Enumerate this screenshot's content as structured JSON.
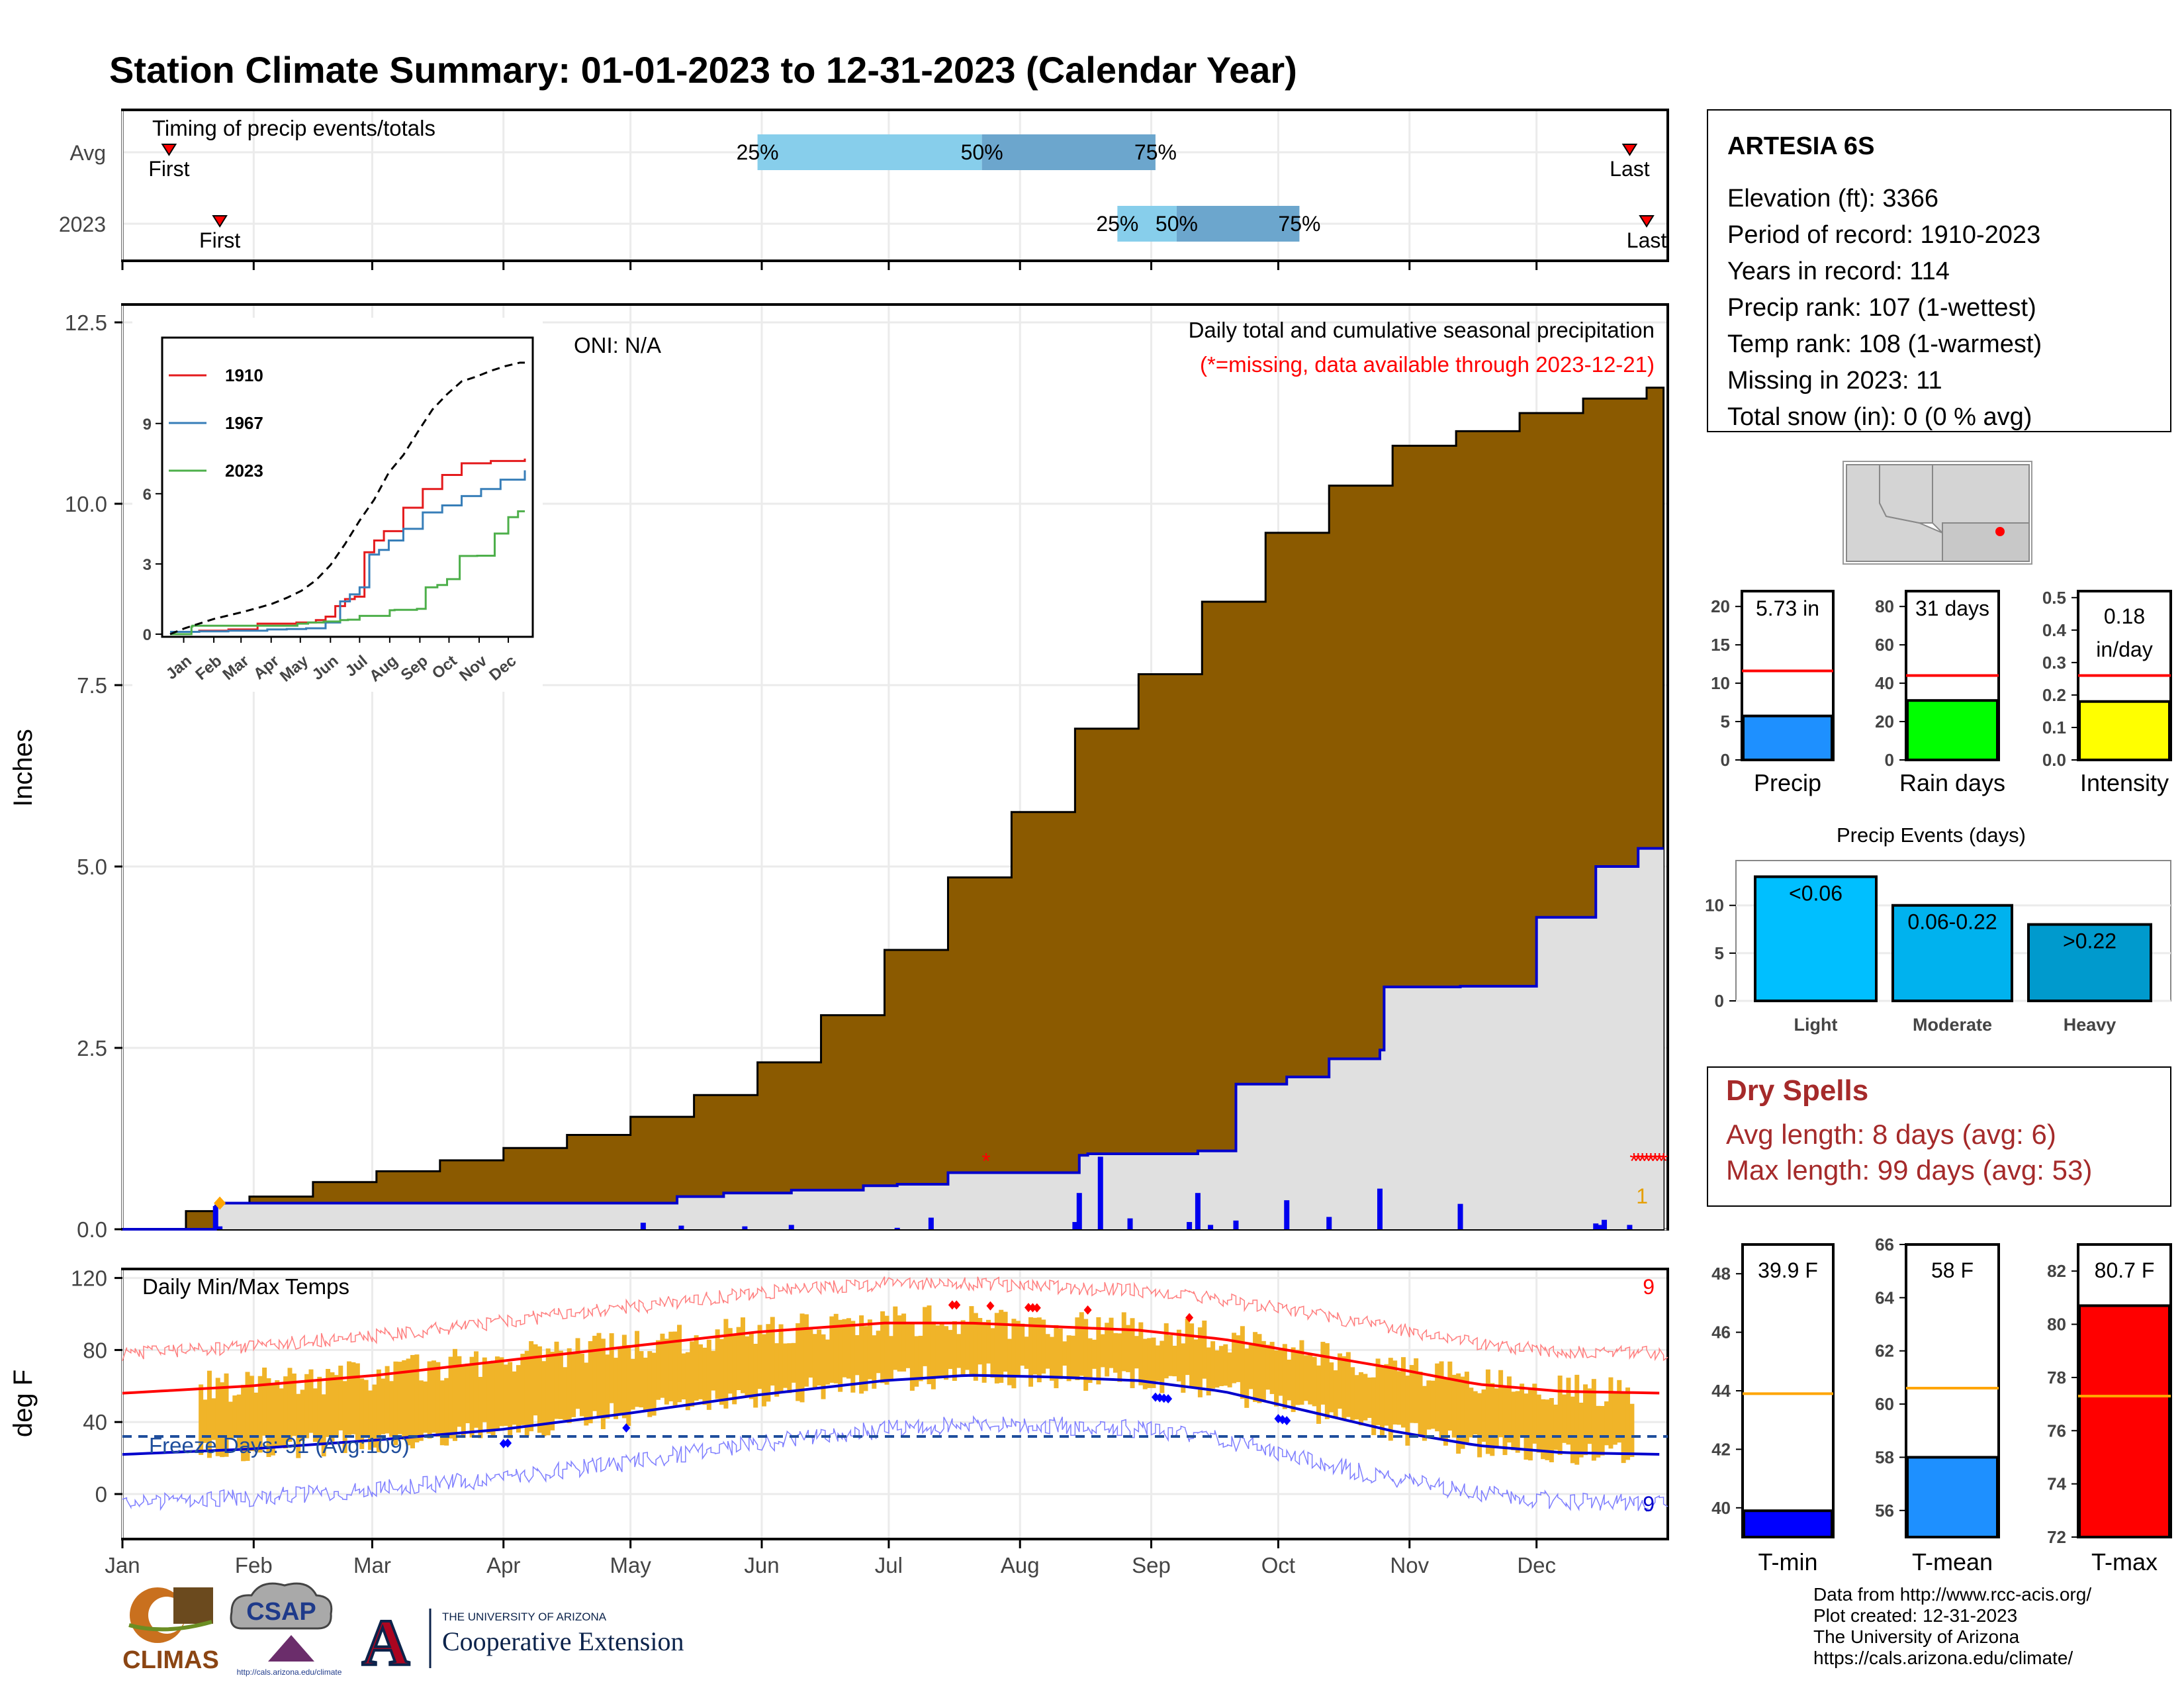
{
  "title": "Station Climate Summary: 01-01-2023 to 12-31-2023 (Calendar Year)",
  "colors": {
    "title": "#000080",
    "cum_avg_fill": "#8B5A00",
    "cum_obs_fill": "#E0E0E0",
    "cum_obs_line": "#0000CC",
    "daily_bar": "#0000EE",
    "temp_bar": "#F0B429",
    "tmax_avg": "#FF0000",
    "tmin_avg": "#0000CC",
    "freeze_line": "#1F4E9C",
    "spell_text": "#A52A2A",
    "q_light": "#87CEEB",
    "q_dark": "#6CA6CD"
  },
  "timing": {
    "title": "Timing of precip events/totals",
    "rows": [
      "Avg",
      "2023"
    ],
    "avg": {
      "first_doy": 11,
      "p25_doy": 150,
      "p50_doy": 203,
      "p75_doy": 244,
      "last_doy": 356,
      "first_label": "First",
      "last_label": "Last",
      "p25_label": "25%",
      "p50_label": "50%",
      "p75_label": "75%"
    },
    "y2023": {
      "first_doy": 23,
      "p25_doy": 235,
      "p50_doy": 249,
      "p75_doy": 278,
      "last_doy": 360,
      "first_label": "First",
      "last_label": "Last",
      "p25_label": "25%",
      "p50_label": "50%",
      "p75_label": "75%"
    }
  },
  "station": {
    "name": "ARTESIA 6S",
    "lines": [
      "Elevation (ft): 3366",
      "Period of record: 1910-2023",
      "Years in record: 114",
      "Precip rank: 107 (1-wettest)",
      "Temp rank: 108 (1-warmest)",
      "Missing in 2023: 11",
      "Total snow (in): 0 (0 % avg)"
    ]
  },
  "chart_data": [
    {
      "id": "cumulative-precip",
      "type": "area",
      "ylabel": "Inches",
      "annotation": "Daily total and cumulative seasonal precipitation",
      "missing_note": "(*=missing, data available through 2023-12-21)",
      "oni": "ONI: N/A",
      "ylim": [
        0,
        12.5
      ],
      "yticks": [
        "0.0",
        "2.5",
        "5.0",
        "7.5",
        "10.0",
        "12.5"
      ],
      "xlim_doy": [
        0,
        365
      ],
      "avg_cumulative": {
        "x_doy": [
          0,
          15,
          30,
          45,
          60,
          75,
          90,
          105,
          120,
          135,
          150,
          165,
          180,
          195,
          210,
          225,
          240,
          255,
          270,
          285,
          300,
          315,
          330,
          345,
          360,
          364
        ],
        "y": [
          0,
          0.25,
          0.45,
          0.65,
          0.8,
          0.95,
          1.12,
          1.3,
          1.55,
          1.85,
          2.3,
          2.95,
          3.85,
          4.85,
          5.75,
          6.9,
          7.65,
          8.65,
          9.6,
          10.25,
          10.8,
          11.0,
          11.25,
          11.45,
          11.6,
          11.6
        ]
      },
      "obs_cumulative": {
        "x_doy": [
          0,
          18,
          22,
          23,
          60,
          121,
          131,
          142,
          158,
          175,
          183,
          194,
          195,
          210,
          219,
          225,
          226,
          228,
          232,
          236,
          238,
          252,
          254,
          257,
          263,
          270,
          272,
          275,
          285,
          297,
          298,
          316,
          334,
          348,
          349,
          350,
          358,
          364
        ],
        "y": [
          0,
          0,
          0.32,
          0.36,
          0.36,
          0.36,
          0.45,
          0.5,
          0.54,
          0.6,
          0.62,
          0.62,
          0.78,
          0.78,
          0.78,
          0.78,
          1.02,
          1.04,
          1.04,
          1.04,
          1.04,
          1.04,
          1.08,
          1.08,
          2.0,
          2.0,
          2.0,
          2.1,
          2.35,
          2.47,
          3.34,
          3.35,
          4.3,
          5.0,
          5.0,
          5.0,
          5.25,
          5.25
        ]
      },
      "daily_precip": {
        "x_doy": [
          22,
          23,
          123,
          132,
          147,
          158,
          183,
          191,
          225,
          226,
          231,
          238,
          252,
          254,
          257,
          263,
          275,
          285,
          297,
          316,
          348,
          349,
          350,
          356
        ],
        "y": [
          0.32,
          0.04,
          0.09,
          0.05,
          0.04,
          0.06,
          0.02,
          0.16,
          0.1,
          0.5,
          1.0,
          0.15,
          0.1,
          0.5,
          0.06,
          0.12,
          0.4,
          0.17,
          0.56,
          0.35,
          0.08,
          0.06,
          0.13,
          0.06
        ]
      },
      "missing_doy": [
        204,
        357,
        358,
        359,
        360,
        361,
        362,
        363,
        364
      ],
      "first_event_marker_doy": 23,
      "missing_count_label": "1"
    },
    {
      "id": "inset-cumulative",
      "type": "line",
      "yticks": [
        "0",
        "3",
        "6",
        "9"
      ],
      "ylim": [
        0,
        12.5
      ],
      "x_labels": [
        "Jan",
        "Feb",
        "Mar",
        "Apr",
        "May",
        "Jun",
        "Jul",
        "Aug",
        "Sep",
        "Oct",
        "Nov",
        "Dec"
      ],
      "series": [
        {
          "name": "1910",
          "color": "#E41A1C",
          "x_doy": [
            0,
            30,
            60,
            90,
            110,
            130,
            150,
            160,
            170,
            180,
            190,
            200,
            210,
            220,
            240,
            260,
            280,
            300,
            330,
            365
          ],
          "y": [
            0.1,
            0.15,
            0.2,
            0.45,
            0.45,
            0.5,
            0.6,
            0.75,
            1.2,
            1.5,
            1.6,
            3.5,
            4.0,
            4.4,
            5.4,
            6.2,
            6.8,
            7.3,
            7.4,
            7.5
          ]
        },
        {
          "name": "1967",
          "color": "#377EB8",
          "x_doy": [
            0,
            30,
            60,
            100,
            120,
            140,
            160,
            175,
            185,
            195,
            205,
            215,
            225,
            240,
            260,
            280,
            300,
            320,
            340,
            365
          ],
          "y": [
            0.1,
            0.12,
            0.15,
            0.2,
            0.22,
            0.25,
            0.5,
            1.4,
            1.7,
            2.0,
            3.4,
            3.6,
            4.0,
            4.5,
            5.2,
            5.5,
            5.9,
            6.2,
            6.6,
            7.0
          ]
        },
        {
          "name": "2023",
          "color": "#4DAF4A",
          "x_doy": [
            0,
            22,
            23,
            60,
            121,
            131,
            142,
            158,
            175,
            183,
            195,
            226,
            231,
            254,
            263,
            275,
            285,
            298,
            316,
            334,
            348,
            358,
            365
          ],
          "y": [
            0,
            0.32,
            0.36,
            0.36,
            0.36,
            0.45,
            0.5,
            0.54,
            0.6,
            0.62,
            0.78,
            1.02,
            1.04,
            1.08,
            2.0,
            2.1,
            2.35,
            3.34,
            3.35,
            4.3,
            5.0,
            5.25,
            5.25
          ]
        },
        {
          "name": "",
          "color": "#000000",
          "x_doy": [
            0,
            15,
            30,
            45,
            60,
            75,
            90,
            105,
            120,
            135,
            150,
            165,
            180,
            195,
            210,
            225,
            240,
            255,
            270,
            285,
            300,
            315,
            330,
            345,
            360,
            365
          ],
          "y": [
            0,
            0.25,
            0.45,
            0.65,
            0.8,
            0.95,
            1.12,
            1.3,
            1.55,
            1.85,
            2.3,
            2.95,
            3.85,
            4.85,
            5.75,
            6.9,
            7.65,
            8.65,
            9.6,
            10.25,
            10.8,
            11.0,
            11.25,
            11.45,
            11.6,
            11.6
          ]
        }
      ]
    },
    {
      "id": "precip-gauges",
      "type": "bar",
      "categories": [
        "Precip",
        "Rain days",
        "Intensity"
      ],
      "values": [
        5.73,
        31,
        0.18
      ],
      "value_labels": [
        "5.73 in",
        "31 days",
        "0.18 in/day"
      ],
      "avg_lines": [
        11.6,
        44,
        0.26
      ],
      "ylims": [
        [
          0,
          22
        ],
        [
          0,
          88
        ],
        [
          0,
          0.52
        ]
      ],
      "yticks": [
        [
          "0",
          "5",
          "10",
          "15",
          "20"
        ],
        [
          "0",
          "20",
          "40",
          "60",
          "80"
        ],
        [
          "0.0",
          "0.1",
          "0.2",
          "0.3",
          "0.4",
          "0.5"
        ]
      ],
      "bar_colors": [
        "#1E90FF",
        "#00FF00",
        "#FFFF00"
      ]
    },
    {
      "id": "precip-events",
      "type": "bar",
      "title": "Precip Events (days)",
      "categories": [
        "Light",
        "Moderate",
        "Heavy"
      ],
      "bar_labels": [
        "<0.06",
        "0.06-0.22",
        ">0.22"
      ],
      "values": [
        13,
        10,
        8
      ],
      "ylim": [
        0,
        14
      ],
      "yticks": [
        "0",
        "5",
        "10"
      ],
      "bar_colors": [
        "#00BFFF",
        "#00B2EE",
        "#009ACD"
      ]
    },
    {
      "id": "daily-temps",
      "type": "bar",
      "title": "Daily Min/Max Temps",
      "ylabel": "deg F",
      "ylim": [
        -25,
        125
      ],
      "yticks": [
        "0",
        "40",
        "80",
        "120"
      ],
      "freeze_label": "Freeze Days: 91 (Avg:109)",
      "freeze_threshold": 32,
      "record_high_count": "9",
      "record_low_count": "9",
      "x_labels": [
        "Jan",
        "Feb",
        "Mar",
        "Apr",
        "May",
        "Jun",
        "Jul",
        "Aug",
        "Sep",
        "Oct",
        "Nov",
        "Dec"
      ],
      "avg_tmax": {
        "x_doy": [
          0,
          30,
          60,
          90,
          120,
          150,
          180,
          200,
          220,
          240,
          260,
          280,
          300,
          320,
          340,
          365
        ],
        "y": [
          56,
          60,
          66,
          74,
          82,
          90,
          95,
          95,
          93,
          91,
          86,
          78,
          70,
          61,
          57,
          56
        ]
      },
      "avg_tmin": {
        "x_doy": [
          0,
          30,
          60,
          90,
          120,
          150,
          180,
          200,
          220,
          240,
          260,
          280,
          300,
          320,
          340,
          365
        ],
        "y": [
          22,
          25,
          30,
          36,
          45,
          55,
          63,
          66,
          65,
          63,
          57,
          46,
          35,
          27,
          23,
          22
        ]
      },
      "record_highs_doy": [
        196,
        197,
        205,
        214,
        215,
        216,
        228,
        252
      ],
      "record_lows_doy": [
        90,
        91,
        119,
        244,
        245,
        246,
        247,
        273,
        274,
        275
      ]
    },
    {
      "id": "temp-gauges",
      "type": "bar",
      "categories": [
        "T-min",
        "T-mean",
        "T-max"
      ],
      "values": [
        39.9,
        58,
        80.7
      ],
      "value_labels": [
        "39.9 F",
        "58 F",
        "80.7 F"
      ],
      "avg_lines": [
        43.9,
        60.6,
        77.3
      ],
      "ylims": [
        [
          39,
          49
        ],
        [
          55,
          66
        ],
        [
          72,
          83
        ]
      ],
      "yticks": [
        [
          "40",
          "42",
          "44",
          "46",
          "48"
        ],
        [
          "56",
          "58",
          "60",
          "62",
          "64",
          "66"
        ],
        [
          "72",
          "74",
          "76",
          "78",
          "80",
          "82"
        ]
      ],
      "bar_colors": [
        "#0000FF",
        "#1E90FF",
        "#FF0000"
      ]
    }
  ],
  "month_labels": [
    "Jan",
    "Feb",
    "Mar",
    "Apr",
    "May",
    "Jun",
    "Jul",
    "Aug",
    "Sep",
    "Oct",
    "Nov",
    "Dec"
  ],
  "dry_spells": {
    "title": "Dry Spells",
    "avg_line": "Avg length: 8 days (avg: 6)",
    "max_line": "Max length: 99 days (avg: 53)"
  },
  "footer": {
    "lines": [
      "Data from http://www.rcc-acis.org/",
      "Plot created: 12-31-2023",
      "The University of Arizona",
      "https://cals.arizona.edu/climate/"
    ],
    "logo_climas": "CLIMAS",
    "logo_csap": "CSAP",
    "logo_csap_url": "http://cals.arizona.edu/climate",
    "ua_small": "THE UNIVERSITY OF ARIZONA",
    "ua_big": "Cooperative Extension",
    "ua_letter": "A"
  },
  "icons": [
    "location-map-icon",
    "climas-logo-icon",
    "csap-logo-icon",
    "ua-logo-icon"
  ]
}
